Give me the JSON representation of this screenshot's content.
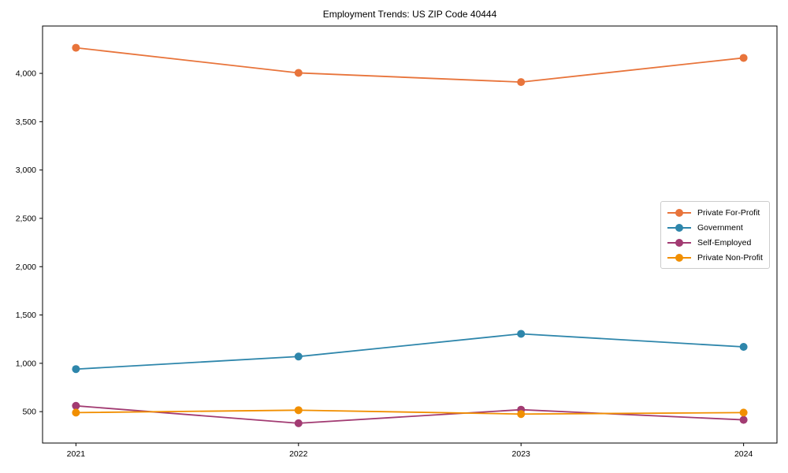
{
  "page": {
    "background_color": "#ffffff"
  },
  "chart_data": {
    "type": "line",
    "title": "Employment Trends: US ZIP Code 40444",
    "xlabel": "",
    "ylabel": "",
    "x": [
      2021,
      2022,
      2023,
      2024
    ],
    "xticks": [
      "2021",
      "2022",
      "2023",
      "2024"
    ],
    "yticks": [
      500,
      1000,
      1500,
      2000,
      2500,
      3000,
      3500,
      4000
    ],
    "xlim": [
      2020.85,
      2024.15
    ],
    "ylim": [
      175,
      4490
    ],
    "grid": false,
    "legend_position": "center right",
    "marker": "circle",
    "series": [
      {
        "name": "Private For-Profit",
        "color": "#E8743B",
        "values": [
          4265,
          4005,
          3910,
          4160
        ]
      },
      {
        "name": "Government",
        "color": "#2E86AB",
        "values": [
          940,
          1070,
          1305,
          1170
        ]
      },
      {
        "name": "Self-Employed",
        "color": "#A23B72",
        "values": [
          560,
          380,
          520,
          415
        ]
      },
      {
        "name": "Private Non-Profit",
        "color": "#F18F01",
        "values": [
          490,
          515,
          475,
          490
        ]
      }
    ]
  }
}
